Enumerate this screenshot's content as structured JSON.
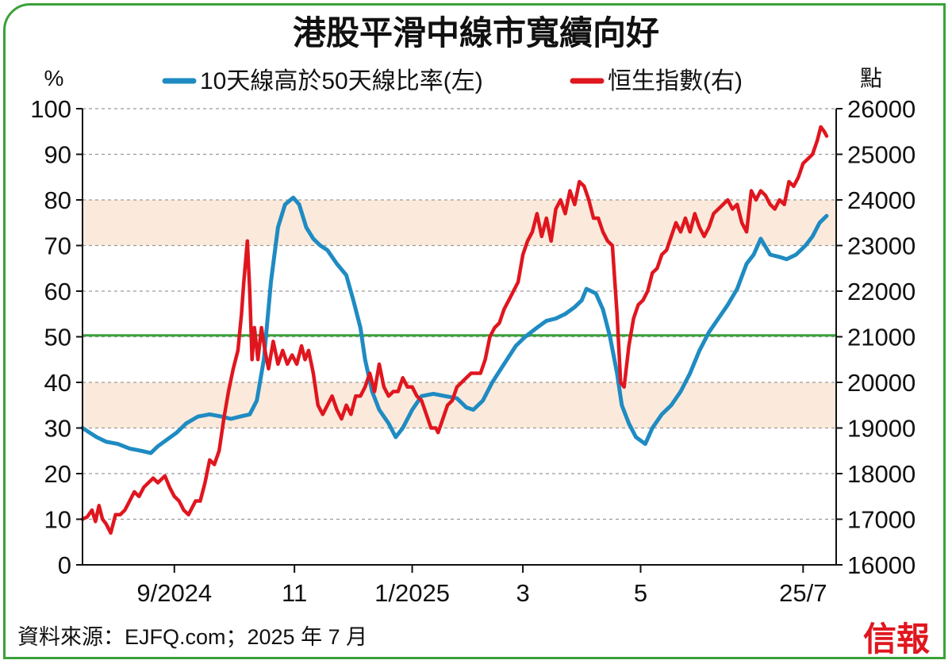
{
  "chart_data": {
    "type": "line",
    "title": "港股平滑中線市寬續向好",
    "left_axis_unit": "%",
    "right_axis_unit": "點",
    "left_ylim": [
      0,
      100
    ],
    "right_ylim": [
      16000,
      26000
    ],
    "left_ticks": [
      "0",
      "10",
      "20",
      "30",
      "40",
      "50",
      "60",
      "70",
      "80",
      "90",
      "100"
    ],
    "right_ticks": [
      "16000",
      "17000",
      "18000",
      "19000",
      "20000",
      "21000",
      "22000",
      "23000",
      "24000",
      "25000",
      "26000"
    ],
    "x_tick_labels": [
      "9/2024",
      "11",
      "1/2025",
      "3",
      "5",
      "25/7"
    ],
    "x_tick_positions": [
      4.9,
      10.0,
      15.0,
      19.7,
      24.7,
      31.6
    ],
    "x_range": [
      1.0,
      31.6
    ],
    "reference_line": {
      "value": 50.3,
      "color": "#3aa13a"
    },
    "shaded_bands": [
      [
        70,
        80
      ],
      [
        30,
        40
      ]
    ],
    "band_color": "#fbeadb",
    "grid": true,
    "legend_position": "top",
    "series": [
      {
        "name": "10天線高於50天線比率(左)",
        "color": "#1f8bc2",
        "axis": "left",
        "points": [
          [
            1.0,
            30
          ],
          [
            1.3,
            29
          ],
          [
            1.6,
            28
          ],
          [
            2.0,
            27
          ],
          [
            2.5,
            26.5
          ],
          [
            3.0,
            25.5
          ],
          [
            3.5,
            25
          ],
          [
            3.9,
            24.5
          ],
          [
            4.2,
            26
          ],
          [
            4.6,
            27.5
          ],
          [
            5.0,
            29
          ],
          [
            5.4,
            31
          ],
          [
            5.9,
            32.5
          ],
          [
            6.4,
            33
          ],
          [
            6.9,
            32.5
          ],
          [
            7.3,
            32
          ],
          [
            7.7,
            32.5
          ],
          [
            8.1,
            33
          ],
          [
            8.4,
            36
          ],
          [
            8.7,
            45
          ],
          [
            9.0,
            62
          ],
          [
            9.3,
            74
          ],
          [
            9.6,
            79
          ],
          [
            9.95,
            80.5
          ],
          [
            10.2,
            79
          ],
          [
            10.5,
            74
          ],
          [
            10.8,
            71.5
          ],
          [
            11.1,
            70
          ],
          [
            11.4,
            69
          ],
          [
            11.8,
            66
          ],
          [
            12.2,
            63.5
          ],
          [
            12.5,
            58
          ],
          [
            12.8,
            52
          ],
          [
            13.0,
            45
          ],
          [
            13.3,
            38
          ],
          [
            13.6,
            34
          ],
          [
            14.0,
            31
          ],
          [
            14.3,
            28
          ],
          [
            14.6,
            30
          ],
          [
            15.0,
            34
          ],
          [
            15.4,
            37
          ],
          [
            15.9,
            37.5
          ],
          [
            16.4,
            37
          ],
          [
            16.9,
            36.5
          ],
          [
            17.3,
            34.5
          ],
          [
            17.6,
            34
          ],
          [
            18.0,
            36
          ],
          [
            18.4,
            40
          ],
          [
            18.9,
            44
          ],
          [
            19.4,
            48
          ],
          [
            19.8,
            50
          ],
          [
            20.3,
            52
          ],
          [
            20.7,
            53.5
          ],
          [
            21.1,
            54
          ],
          [
            21.5,
            55
          ],
          [
            21.9,
            56.5
          ],
          [
            22.2,
            58
          ],
          [
            22.4,
            60.5
          ],
          [
            22.8,
            59.5
          ],
          [
            23.1,
            56
          ],
          [
            23.4,
            50
          ],
          [
            23.7,
            42
          ],
          [
            23.9,
            35
          ],
          [
            24.2,
            31
          ],
          [
            24.5,
            28
          ],
          [
            24.9,
            26.5
          ],
          [
            25.2,
            30
          ],
          [
            25.6,
            33
          ],
          [
            26.0,
            35
          ],
          [
            26.4,
            38
          ],
          [
            26.8,
            42
          ],
          [
            27.2,
            47
          ],
          [
            27.6,
            51
          ],
          [
            28.0,
            54
          ],
          [
            28.4,
            57
          ],
          [
            28.8,
            60.5
          ],
          [
            29.2,
            66
          ],
          [
            29.5,
            68
          ],
          [
            29.8,
            71.5
          ],
          [
            30.2,
            68
          ],
          [
            30.6,
            67.5
          ],
          [
            30.9,
            67
          ],
          [
            31.3,
            68
          ],
          [
            31.7,
            70
          ],
          [
            32.0,
            72
          ],
          [
            32.3,
            75
          ],
          [
            32.6,
            76.5
          ]
        ]
      },
      {
        "name": "恒生指數(右)",
        "color": "#e0161f",
        "axis": "right",
        "points": [
          [
            1.0,
            17000
          ],
          [
            1.2,
            17050
          ],
          [
            1.4,
            17200
          ],
          [
            1.55,
            16950
          ],
          [
            1.7,
            17300
          ],
          [
            1.85,
            17000
          ],
          [
            2.0,
            16900
          ],
          [
            2.2,
            16700
          ],
          [
            2.4,
            17100
          ],
          [
            2.6,
            17100
          ],
          [
            2.8,
            17200
          ],
          [
            3.0,
            17400
          ],
          [
            3.2,
            17600
          ],
          [
            3.4,
            17500
          ],
          [
            3.6,
            17700
          ],
          [
            3.8,
            17800
          ],
          [
            4.0,
            17900
          ],
          [
            4.2,
            17800
          ],
          [
            4.5,
            17950
          ],
          [
            4.7,
            17700
          ],
          [
            4.9,
            17500
          ],
          [
            5.1,
            17400
          ],
          [
            5.3,
            17200
          ],
          [
            5.5,
            17100
          ],
          [
            5.8,
            17400
          ],
          [
            6.0,
            17400
          ],
          [
            6.2,
            17800
          ],
          [
            6.4,
            18300
          ],
          [
            6.6,
            18200
          ],
          [
            6.8,
            18500
          ],
          [
            7.0,
            19200
          ],
          [
            7.2,
            19800
          ],
          [
            7.4,
            20300
          ],
          [
            7.6,
            20700
          ],
          [
            7.75,
            21500
          ],
          [
            7.85,
            22200
          ],
          [
            8.0,
            23100
          ],
          [
            8.1,
            22000
          ],
          [
            8.2,
            20500
          ],
          [
            8.3,
            21200
          ],
          [
            8.45,
            20500
          ],
          [
            8.6,
            21200
          ],
          [
            8.75,
            20700
          ],
          [
            8.9,
            20300
          ],
          [
            9.1,
            20900
          ],
          [
            9.3,
            20400
          ],
          [
            9.5,
            20700
          ],
          [
            9.7,
            20400
          ],
          [
            9.9,
            20600
          ],
          [
            10.1,
            20400
          ],
          [
            10.3,
            20800
          ],
          [
            10.45,
            20500
          ],
          [
            10.6,
            20700
          ],
          [
            10.8,
            20200
          ],
          [
            11.0,
            19500
          ],
          [
            11.2,
            19300
          ],
          [
            11.4,
            19500
          ],
          [
            11.6,
            19700
          ],
          [
            11.8,
            19400
          ],
          [
            12.0,
            19200
          ],
          [
            12.2,
            19500
          ],
          [
            12.4,
            19300
          ],
          [
            12.6,
            19700
          ],
          [
            12.8,
            19700
          ],
          [
            13.0,
            19900
          ],
          [
            13.2,
            20200
          ],
          [
            13.4,
            19800
          ],
          [
            13.6,
            20400
          ],
          [
            13.8,
            19900
          ],
          [
            14.0,
            19700
          ],
          [
            14.2,
            19800
          ],
          [
            14.4,
            19800
          ],
          [
            14.6,
            20100
          ],
          [
            14.8,
            19900
          ],
          [
            15.0,
            19900
          ],
          [
            15.2,
            19700
          ],
          [
            15.4,
            19600
          ],
          [
            15.6,
            19300
          ],
          [
            15.8,
            19000
          ],
          [
            16.0,
            19000
          ],
          [
            16.1,
            18900
          ],
          [
            16.3,
            19200
          ],
          [
            16.5,
            19500
          ],
          [
            16.7,
            19600
          ],
          [
            16.9,
            19900
          ],
          [
            17.1,
            20000
          ],
          [
            17.3,
            20100
          ],
          [
            17.5,
            20200
          ],
          [
            17.7,
            20200
          ],
          [
            17.9,
            20200
          ],
          [
            18.1,
            20500
          ],
          [
            18.3,
            21000
          ],
          [
            18.5,
            21200
          ],
          [
            18.7,
            21300
          ],
          [
            18.9,
            21600
          ],
          [
            19.1,
            21800
          ],
          [
            19.3,
            22000
          ],
          [
            19.5,
            22200
          ],
          [
            19.7,
            22800
          ],
          [
            19.9,
            23100
          ],
          [
            20.1,
            23300
          ],
          [
            20.3,
            23700
          ],
          [
            20.5,
            23200
          ],
          [
            20.7,
            23600
          ],
          [
            20.9,
            23100
          ],
          [
            21.1,
            23800
          ],
          [
            21.3,
            24000
          ],
          [
            21.5,
            23700
          ],
          [
            21.7,
            24200
          ],
          [
            21.9,
            23900
          ],
          [
            22.1,
            24400
          ],
          [
            22.3,
            24300
          ],
          [
            22.5,
            24000
          ],
          [
            22.7,
            23600
          ],
          [
            22.9,
            23600
          ],
          [
            23.1,
            23300
          ],
          [
            23.3,
            23100
          ],
          [
            23.5,
            23000
          ],
          [
            23.7,
            21500
          ],
          [
            23.85,
            20000
          ],
          [
            24.0,
            19900
          ],
          [
            24.2,
            20800
          ],
          [
            24.4,
            21400
          ],
          [
            24.6,
            21700
          ],
          [
            24.8,
            21800
          ],
          [
            25.0,
            22000
          ],
          [
            25.2,
            22400
          ],
          [
            25.4,
            22500
          ],
          [
            25.6,
            22800
          ],
          [
            25.8,
            22900
          ],
          [
            26.0,
            23200
          ],
          [
            26.2,
            23500
          ],
          [
            26.4,
            23300
          ],
          [
            26.6,
            23600
          ],
          [
            26.8,
            23300
          ],
          [
            27.0,
            23700
          ],
          [
            27.2,
            23400
          ],
          [
            27.4,
            23200
          ],
          [
            27.6,
            23400
          ],
          [
            27.8,
            23700
          ],
          [
            28.0,
            23800
          ],
          [
            28.2,
            23900
          ],
          [
            28.4,
            24000
          ],
          [
            28.6,
            23800
          ],
          [
            28.8,
            23900
          ],
          [
            29.0,
            23500
          ],
          [
            29.2,
            23300
          ],
          [
            29.4,
            24200
          ],
          [
            29.6,
            24000
          ],
          [
            29.8,
            24200
          ],
          [
            30.0,
            24100
          ],
          [
            30.2,
            23900
          ],
          [
            30.4,
            23800
          ],
          [
            30.6,
            24000
          ],
          [
            30.8,
            23900
          ],
          [
            31.0,
            24400
          ],
          [
            31.2,
            24300
          ],
          [
            31.4,
            24500
          ],
          [
            31.6,
            24800
          ],
          [
            31.8,
            24900
          ],
          [
            32.0,
            25000
          ],
          [
            32.2,
            25300
          ],
          [
            32.35,
            25600
          ],
          [
            32.5,
            25500
          ],
          [
            32.6,
            25400
          ]
        ]
      }
    ]
  },
  "footer": {
    "source": "資料來源：EJFQ.com；2025 年 7 月",
    "brand": "信報",
    "brand_color": "#e0161f"
  }
}
